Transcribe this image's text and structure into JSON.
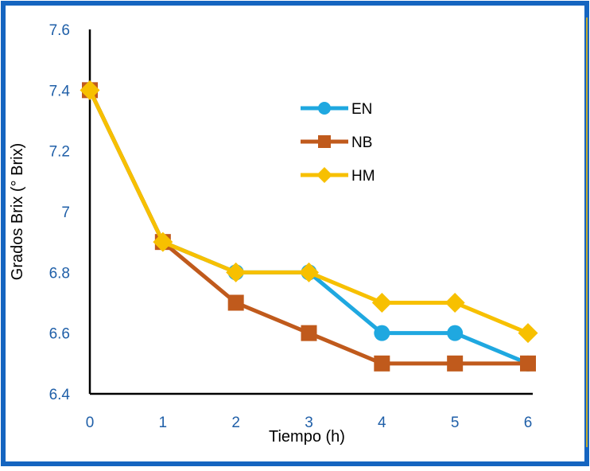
{
  "chart_data": {
    "type": "line",
    "xlabel": "Tiempo (h)",
    "ylabel": "Grados Brix (° Brix)",
    "x": [
      0,
      1,
      2,
      3,
      4,
      5,
      6
    ],
    "xlim": [
      0,
      6
    ],
    "ylim": [
      6.4,
      7.6
    ],
    "yticks": [
      "6.4",
      "6.6",
      "6.8",
      "7",
      "7.2",
      "7.4",
      "7.6"
    ],
    "xticks": [
      "0",
      "1",
      "2",
      "3",
      "4",
      "5",
      "6"
    ],
    "grid": false,
    "legend_position": "top-right",
    "series": [
      {
        "name": "EN",
        "values": [
          7.4,
          6.9,
          6.8,
          6.8,
          6.6,
          6.6,
          6.5
        ],
        "color": "#1FA8E0",
        "marker": "circle"
      },
      {
        "name": "NB",
        "values": [
          7.4,
          6.9,
          6.7,
          6.6,
          6.5,
          6.5,
          6.5
        ],
        "color": "#C05A1C",
        "marker": "square"
      },
      {
        "name": "HM",
        "values": [
          7.4,
          6.9,
          6.8,
          6.8,
          6.7,
          6.7,
          6.6
        ],
        "color": "#F7C000",
        "marker": "diamond"
      }
    ],
    "colors": {
      "border": "#1565C0",
      "tick_text": "#1F5FA8",
      "axis": "#000000",
      "accent_line": "#F7C000"
    }
  }
}
